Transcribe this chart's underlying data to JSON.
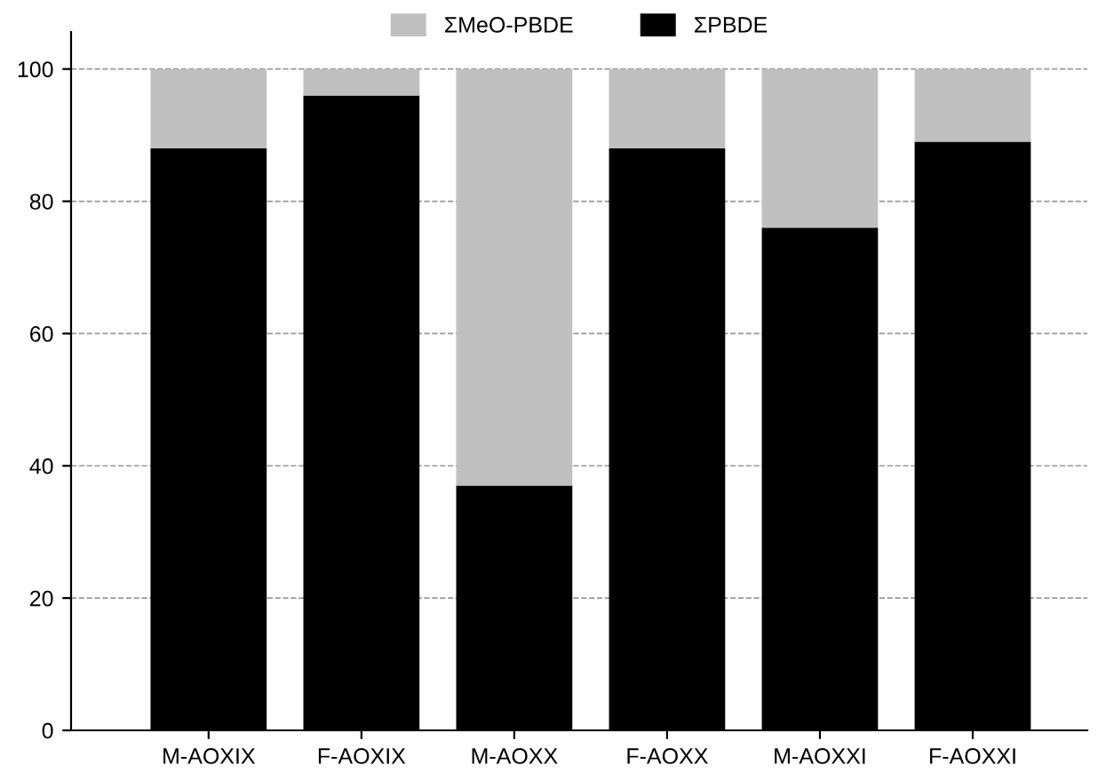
{
  "chart_data": {
    "type": "bar",
    "stacked": true,
    "categories": [
      "M-AOXIX",
      "F-AOXIX",
      "M-AOXX",
      "F-AOXX",
      "M-AOXXI",
      "F-AOXXI"
    ],
    "series": [
      {
        "name": "ΣPBDE",
        "color": "#000000",
        "values": [
          88,
          96,
          37,
          88,
          76,
          89
        ]
      },
      {
        "name": "ΣMeO-PBDE",
        "color": "#c0c0c0",
        "values": [
          12,
          4,
          63,
          12,
          24,
          11
        ]
      }
    ],
    "ylim": [
      0,
      105.6
    ],
    "yticks": [
      0,
      20,
      40,
      60,
      80,
      100
    ],
    "grid": "y",
    "legend": "top"
  }
}
